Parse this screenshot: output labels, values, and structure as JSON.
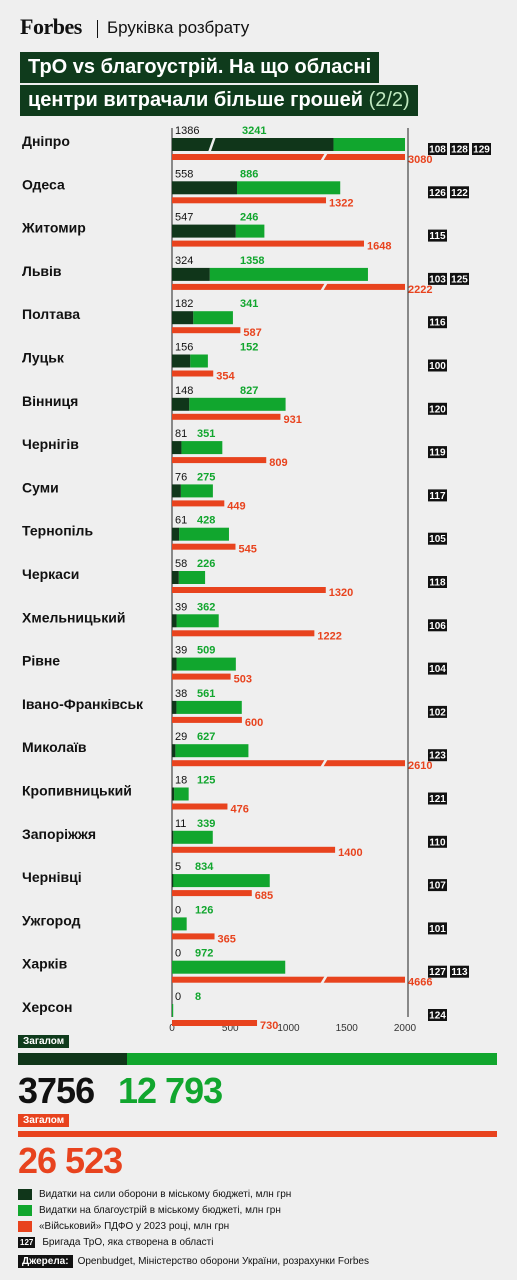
{
  "header": {
    "brand": "Forbes",
    "section": "Бруківка розбрату"
  },
  "title": {
    "line1": "ТрО vs благоустрій. На що обласні",
    "line2": "центри витрачали більше грошей",
    "part": "(2/2)"
  },
  "colors": {
    "defense": "#10361a",
    "improvement": "#11a62e",
    "pdfo": "#e8431e",
    "title_bg": "#0f3b1c"
  },
  "chart_data": {
    "type": "bar",
    "orientation": "horizontal",
    "xlim": [
      0,
      2000
    ],
    "x_ticks": [
      0,
      500,
      1000,
      1500,
      2000
    ],
    "series": [
      {
        "name": "Видатки на сили оборони в міському бюджеті, млн грн",
        "key": "defense"
      },
      {
        "name": "Видатки на благоустрій в міському бюджеті, млн грн",
        "key": "improvement"
      },
      {
        "name": "«Військовий» ПДФО у 2023 році, млн грн",
        "key": "pdfo"
      }
    ],
    "cities": [
      {
        "name": "Дніпро",
        "defense": 1386,
        "improvement": 3241,
        "pdfo": 3080,
        "brigades": [
          "108",
          "128",
          "129"
        ]
      },
      {
        "name": "Одеса",
        "defense": 558,
        "improvement": 886,
        "pdfo": 1322,
        "brigades": [
          "126",
          "122"
        ]
      },
      {
        "name": "Житомир",
        "defense": 547,
        "improvement": 246,
        "pdfo": 1648,
        "brigades": [
          "115"
        ]
      },
      {
        "name": "Львів",
        "defense": 324,
        "improvement": 1358,
        "pdfo": 2222,
        "brigades": [
          "103",
          "125"
        ]
      },
      {
        "name": "Полтава",
        "defense": 182,
        "improvement": 341,
        "pdfo": 587,
        "brigades": [
          "116"
        ]
      },
      {
        "name": "Луцьк",
        "defense": 156,
        "improvement": 152,
        "pdfo": 354,
        "brigades": [
          "100"
        ]
      },
      {
        "name": "Вінниця",
        "defense": 148,
        "improvement": 827,
        "pdfo": 931,
        "brigades": [
          "120"
        ]
      },
      {
        "name": "Чернігів",
        "defense": 81,
        "improvement": 351,
        "pdfo": 809,
        "brigades": [
          "119"
        ]
      },
      {
        "name": "Суми",
        "defense": 76,
        "improvement": 275,
        "pdfo": 449,
        "brigades": [
          "117"
        ]
      },
      {
        "name": "Тернопіль",
        "defense": 61,
        "improvement": 428,
        "pdfo": 545,
        "brigades": [
          "105"
        ]
      },
      {
        "name": "Черкаси",
        "defense": 58,
        "improvement": 226,
        "pdfo": 1320,
        "brigades": [
          "118"
        ]
      },
      {
        "name": "Хмельницький",
        "defense": 39,
        "improvement": 362,
        "pdfo": 1222,
        "brigades": [
          "106"
        ]
      },
      {
        "name": "Рівне",
        "defense": 39,
        "improvement": 509,
        "pdfo": 503,
        "brigades": [
          "104"
        ]
      },
      {
        "name": "Івано-Франківськ",
        "defense": 38,
        "improvement": 561,
        "pdfo": 600,
        "brigades": [
          "102"
        ]
      },
      {
        "name": "Миколаїв",
        "defense": 29,
        "improvement": 627,
        "pdfo": 2610,
        "brigades": [
          "123"
        ]
      },
      {
        "name": "Кропивницький",
        "defense": 18,
        "improvement": 125,
        "pdfo": 476,
        "brigades": [
          "121"
        ]
      },
      {
        "name": "Запоріжжя",
        "defense": 11,
        "improvement": 339,
        "pdfo": 1400,
        "brigades": [
          "110"
        ]
      },
      {
        "name": "Чернівці",
        "defense": 5,
        "improvement": 834,
        "pdfo": 685,
        "brigades": [
          "107"
        ]
      },
      {
        "name": "Ужгород",
        "defense": 0,
        "improvement": 126,
        "pdfo": 365,
        "brigades": [
          "101"
        ]
      },
      {
        "name": "Харків",
        "defense": 0,
        "improvement": 972,
        "pdfo": 4666,
        "brigades": [
          "127",
          "113"
        ]
      },
      {
        "name": "Херсон",
        "defense": 0,
        "improvement": 8,
        "pdfo": 730,
        "brigades": [
          "124"
        ]
      }
    ]
  },
  "totals": {
    "label1": "Загалом",
    "defense": 3756,
    "improvement": 12793,
    "defense_text": "3756",
    "improvement_text": "12 793",
    "label2": "Загалом",
    "pdfo": 26523,
    "pdfo_text": "26 523"
  },
  "legend": [
    {
      "key": "defense",
      "label": "Видатки на сили оборони в міському бюджеті, млн грн"
    },
    {
      "key": "improvement",
      "label": "Видатки на благоустрій в міському бюджеті, млн грн"
    },
    {
      "key": "pdfo",
      "label": "«Військовий» ПДФО у 2023 році, млн грн"
    },
    {
      "key": "brigade",
      "badge": "127",
      "label": "Бригада ТрО, яка створена в області"
    }
  ],
  "sources": {
    "label": "Джерела:",
    "text": "Openbudget, Міністерство оборони України, розрахунки Forbes"
  }
}
